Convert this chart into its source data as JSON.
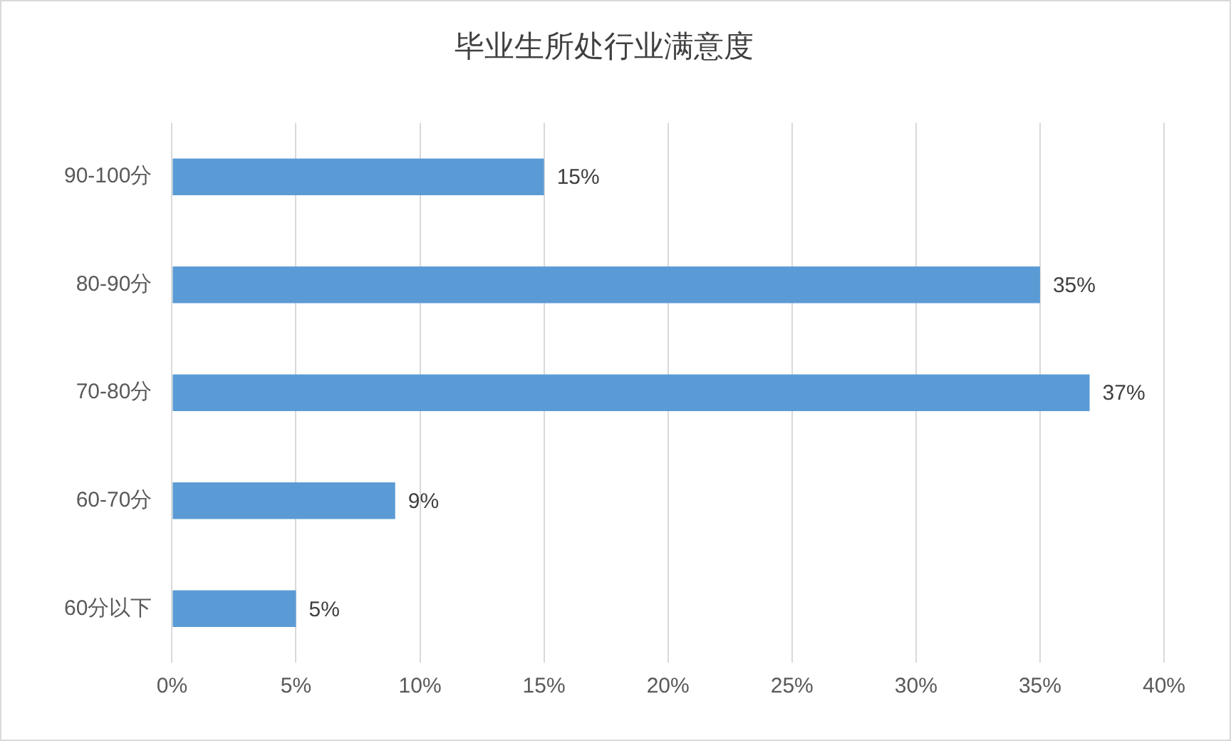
{
  "chart_data": {
    "type": "bar",
    "orientation": "horizontal",
    "title": "毕业生所处行业满意度",
    "categories": [
      "90-100分",
      "80-90分",
      "70-80分",
      "60-70分",
      "60分以下"
    ],
    "values": [
      15,
      35,
      37,
      9,
      5
    ],
    "value_labels": [
      "15%",
      "35%",
      "37%",
      "9%",
      "5%"
    ],
    "color": "#5b9bd5",
    "xlim": [
      0,
      40
    ],
    "xticks": [
      {
        "value": 0,
        "label": "0%"
      },
      {
        "value": 5,
        "label": "5%"
      },
      {
        "value": 10,
        "label": "10%"
      },
      {
        "value": 15,
        "label": "15%"
      },
      {
        "value": 20,
        "label": "20%"
      },
      {
        "value": 25,
        "label": "25%"
      },
      {
        "value": 30,
        "label": "30%"
      },
      {
        "value": 35,
        "label": "35%"
      },
      {
        "value": 40,
        "label": "40%"
      }
    ],
    "grid": "x"
  }
}
